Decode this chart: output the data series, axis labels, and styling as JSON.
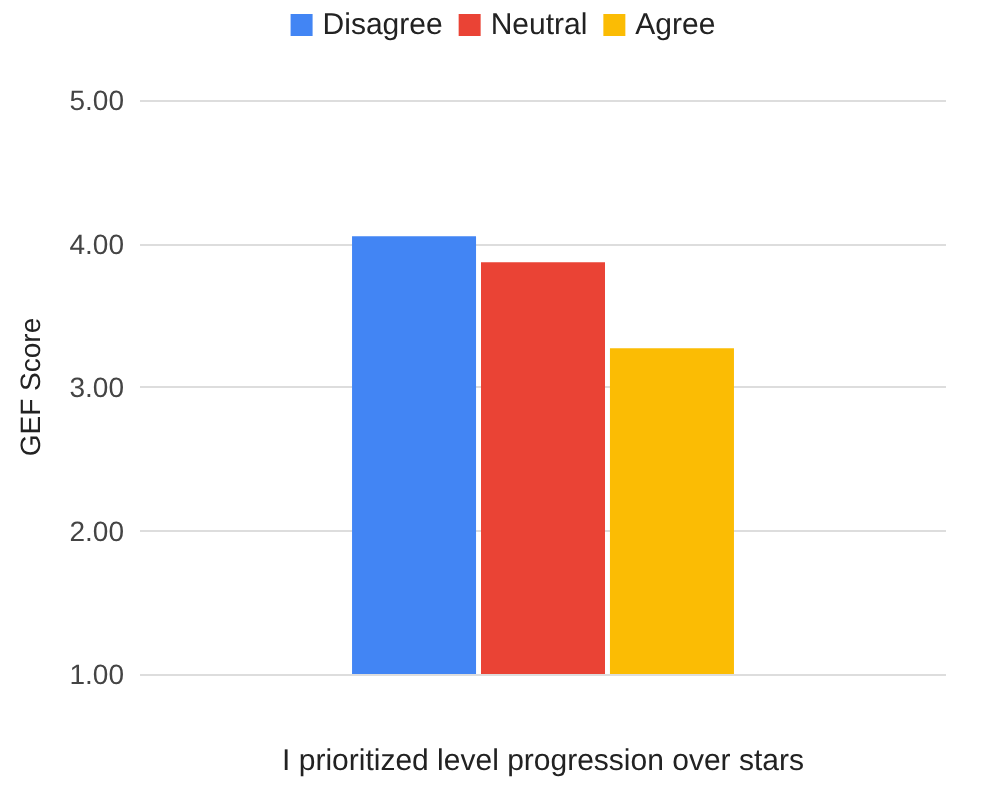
{
  "chart_data": {
    "type": "bar",
    "ylabel": "GEF Score",
    "categories": [
      "I prioritized level progression over stars"
    ],
    "series": [
      {
        "name": "Disagree",
        "color": "#4285f4",
        "values": [
          4.05
        ]
      },
      {
        "name": "Neutral",
        "color": "#ea4335",
        "values": [
          3.87
        ]
      },
      {
        "name": "Agree",
        "color": "#fbbc04",
        "values": [
          3.27
        ]
      }
    ],
    "ylim": [
      1,
      5
    ],
    "yticks": [
      {
        "value": 1,
        "label": "1.00"
      },
      {
        "value": 2,
        "label": "2.00"
      },
      {
        "value": 3,
        "label": "3.00"
      },
      {
        "value": 4,
        "label": "4.00"
      },
      {
        "value": 5,
        "label": "5.00"
      }
    ],
    "grid": "y",
    "legend": "top"
  }
}
